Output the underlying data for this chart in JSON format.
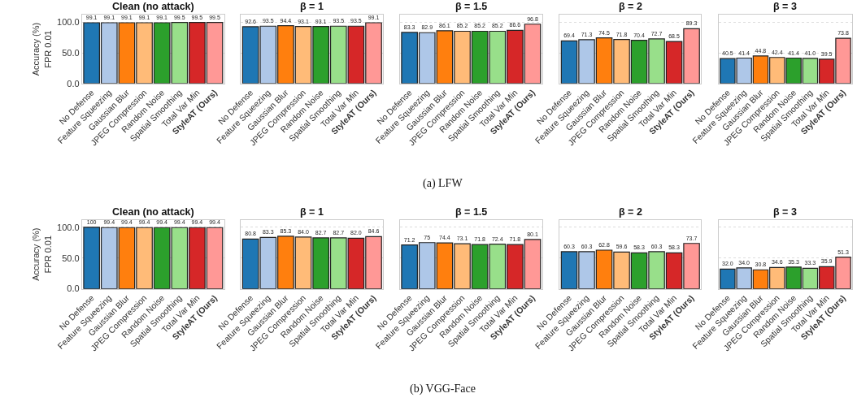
{
  "chart_data": [
    {
      "type": "bar",
      "title": "Clean (no attack)",
      "ylabel": "Accuracy (%)\nFPR 0.01",
      "annotations": [
        "(a) LFW"
      ],
      "categories": [
        "No Defense",
        "Feature Squeezing",
        "Gaussian Blur",
        "JPEG Compression",
        "Random Noise",
        "Spatial Smoothing",
        "Total Var Min",
        "StyleAT (Ours)"
      ],
      "colors": [
        "#1f77b4",
        "#aec7e8",
        "#ff7f0e",
        "#ffbb78",
        "#2ca02c",
        "#98df8a",
        "#d62728",
        "#ff9896"
      ],
      "values": [
        99.1,
        99.1,
        99.1,
        99.1,
        99.1,
        99.5,
        99.5,
        99.5
      ],
      "value_labels": [
        "99.1",
        "99.1",
        "99.1",
        "99.1",
        "99.1",
        "99.5",
        "99.5",
        "99.5"
      ],
      "ylim": [
        0,
        112
      ],
      "yticks": [
        {
          "value": 0,
          "label": "0.0"
        },
        {
          "value": 50,
          "label": "50.0"
        },
        {
          "value": 100,
          "label": "100.0"
        }
      ],
      "grid": "y"
    },
    {
      "type": "bar",
      "title": "β = 1",
      "categories": [
        "No Defense",
        "Feature Squeezing",
        "Gaussian Blur",
        "JPEG Compression",
        "Random Noise",
        "Spatial Smoothing",
        "Total Var Min",
        "StyleAT (Ours)"
      ],
      "colors": [
        "#1f77b4",
        "#aec7e8",
        "#ff7f0e",
        "#ffbb78",
        "#2ca02c",
        "#98df8a",
        "#d62728",
        "#ff9896"
      ],
      "values": [
        92.6,
        93.5,
        94.4,
        93.1,
        93.1,
        93.5,
        93.5,
        99.1
      ],
      "value_labels": [
        "92.6",
        "93.5",
        "94.4",
        "93.1",
        "93.1",
        "93.5",
        "93.5",
        "99.1"
      ],
      "ylim": [
        0,
        112
      ],
      "yticks": [
        {
          "value": 0,
          "label": null
        },
        {
          "value": 50,
          "label": null
        },
        {
          "value": 100,
          "label": null
        }
      ],
      "tick_labels": "x",
      "grid": "y"
    },
    {
      "type": "bar",
      "title": "β = 1.5",
      "categories": [
        "No Defense",
        "Feature Squeezing",
        "Gaussian Blur",
        "JPEG Compression",
        "Random Noise",
        "Spatial Smoothing",
        "Total Var Min",
        "StyleAT (Ours)"
      ],
      "colors": [
        "#1f77b4",
        "#aec7e8",
        "#ff7f0e",
        "#ffbb78",
        "#2ca02c",
        "#98df8a",
        "#d62728",
        "#ff9896"
      ],
      "values": [
        83.3,
        82.9,
        86.1,
        85.2,
        85.2,
        85.2,
        86.6,
        96.8
      ],
      "value_labels": [
        "83.3",
        "82.9",
        "86.1",
        "85.2",
        "85.2",
        "85.2",
        "86.6",
        "96.8"
      ],
      "ylim": [
        0,
        112
      ],
      "yticks": [
        {
          "value": 0,
          "label": null
        },
        {
          "value": 50,
          "label": null
        },
        {
          "value": 100,
          "label": null
        }
      ],
      "tick_labels": "x",
      "grid": "y"
    },
    {
      "type": "bar",
      "title": "β = 2",
      "categories": [
        "No Defense",
        "Feature Squeezing",
        "Gaussian Blur",
        "JPEG Compression",
        "Random Noise",
        "Spatial Smoothing",
        "Total Var Min",
        "StyleAT (Ours)"
      ],
      "colors": [
        "#1f77b4",
        "#aec7e8",
        "#ff7f0e",
        "#ffbb78",
        "#2ca02c",
        "#98df8a",
        "#d62728",
        "#ff9896"
      ],
      "values": [
        69.4,
        71.3,
        74.5,
        71.8,
        70.4,
        72.7,
        68.5,
        89.3
      ],
      "value_labels": [
        "69.4",
        "71.3",
        "74.5",
        "71.8",
        "70.4",
        "72.7",
        "68.5",
        "89.3"
      ],
      "ylim": [
        0,
        112
      ],
      "yticks": [
        {
          "value": 0,
          "label": null
        },
        {
          "value": 50,
          "label": null
        },
        {
          "value": 100,
          "label": null
        }
      ],
      "tick_labels": "x",
      "grid": "y"
    },
    {
      "type": "bar",
      "title": "β = 3",
      "categories": [
        "No Defense",
        "Feature Squeezing",
        "Gaussian Blur",
        "JPEG Compression",
        "Random Noise",
        "Spatial Smoothing",
        "Total Var Min",
        "StyleAT (Ours)"
      ],
      "colors": [
        "#1f77b4",
        "#aec7e8",
        "#ff7f0e",
        "#ffbb78",
        "#2ca02c",
        "#98df8a",
        "#d62728",
        "#ff9896"
      ],
      "values": [
        40.5,
        41.4,
        44.8,
        42.4,
        41.4,
        41.0,
        39.5,
        73.8
      ],
      "value_labels": [
        "40.5",
        "41.4",
        "44.8",
        "42.4",
        "41.4",
        "41.0",
        "39.5",
        "73.8"
      ],
      "ylim": [
        0,
        112
      ],
      "yticks": [
        {
          "value": 0,
          "label": null
        },
        {
          "value": 50,
          "label": null
        },
        {
          "value": 100,
          "label": null
        }
      ],
      "tick_labels": "x",
      "grid": "y"
    },
    {
      "type": "bar",
      "title": "Clean (no attack)",
      "ylabel": "Accuracy (%)\nFPR 0.01",
      "annotations": [
        "(b) VGG-Face"
      ],
      "categories": [
        "No Defense",
        "Feature Squeezing",
        "Gaussian Blur",
        "JPEG Compression",
        "Random Noise",
        "Spatial Smoothing",
        "Total Var Min",
        "StyleAT (Ours)"
      ],
      "colors": [
        "#1f77b4",
        "#aec7e8",
        "#ff7f0e",
        "#ffbb78",
        "#2ca02c",
        "#98df8a",
        "#d62728",
        "#ff9896"
      ],
      "values": [
        100,
        99.4,
        99.4,
        99.4,
        99.4,
        99.4,
        99.4,
        99.4
      ],
      "value_labels": [
        "100",
        "99.4",
        "99.4",
        "99.4",
        "99.4",
        "99.4",
        "99.4",
        "99.4"
      ],
      "ylim": [
        0,
        112
      ],
      "yticks": [
        {
          "value": 0,
          "label": "0.0"
        },
        {
          "value": 50,
          "label": "50.0"
        },
        {
          "value": 100,
          "label": "100.0"
        }
      ],
      "grid": "y"
    },
    {
      "type": "bar",
      "title": "β = 1",
      "categories": [
        "No Defense",
        "Feature Squeezing",
        "Gaussian Blur",
        "JPEG Compression",
        "Random Noise",
        "Spatial Smoothing",
        "Total Var Min",
        "StyleAT (Ours)"
      ],
      "colors": [
        "#1f77b4",
        "#aec7e8",
        "#ff7f0e",
        "#ffbb78",
        "#2ca02c",
        "#98df8a",
        "#d62728",
        "#ff9896"
      ],
      "values": [
        80.8,
        83.3,
        85.3,
        84.0,
        82.7,
        82.7,
        82.0,
        84.6
      ],
      "value_labels": [
        "80.8",
        "83.3",
        "85.3",
        "84.0",
        "82.7",
        "82.7",
        "82.0",
        "84.6"
      ],
      "ylim": [
        0,
        112
      ],
      "yticks": [
        {
          "value": 0,
          "label": null
        },
        {
          "value": 50,
          "label": null
        },
        {
          "value": 100,
          "label": null
        }
      ],
      "tick_labels": "x",
      "grid": "y"
    },
    {
      "type": "bar",
      "title": "β = 1.5",
      "categories": [
        "No Defense",
        "Feature Squeezing",
        "Gaussian Blur",
        "JPEG Compression",
        "Random Noise",
        "Spatial Smoothing",
        "Total Var Min",
        "StyleAT (Ours)"
      ],
      "colors": [
        "#1f77b4",
        "#aec7e8",
        "#ff7f0e",
        "#ffbb78",
        "#2ca02c",
        "#98df8a",
        "#d62728",
        "#ff9896"
      ],
      "values": [
        71.2,
        75,
        74.4,
        73.1,
        71.8,
        72.4,
        71.8,
        80.1
      ],
      "value_labels": [
        "71.2",
        "75",
        "74.4",
        "73.1",
        "71.8",
        "72.4",
        "71.8",
        "80.1"
      ],
      "ylim": [
        0,
        112
      ],
      "yticks": [
        {
          "value": 0,
          "label": null
        },
        {
          "value": 50,
          "label": null
        },
        {
          "value": 100,
          "label": null
        }
      ],
      "tick_labels": "x",
      "grid": "y"
    },
    {
      "type": "bar",
      "title": "β = 2",
      "categories": [
        "No Defense",
        "Feature Squeezing",
        "Gaussian Blur",
        "JPEG Compression",
        "Random Noise",
        "Spatial Smoothing",
        "Total Var Min",
        "StyleAT (Ours)"
      ],
      "colors": [
        "#1f77b4",
        "#aec7e8",
        "#ff7f0e",
        "#ffbb78",
        "#2ca02c",
        "#98df8a",
        "#d62728",
        "#ff9896"
      ],
      "values": [
        60.3,
        60.3,
        62.8,
        59.6,
        58.3,
        60.3,
        58.3,
        73.7
      ],
      "value_labels": [
        "60.3",
        "60.3",
        "62.8",
        "59.6",
        "58.3",
        "60.3",
        "58.3",
        "73.7"
      ],
      "ylim": [
        0,
        112
      ],
      "yticks": [
        {
          "value": 0,
          "label": null
        },
        {
          "value": 50,
          "label": null
        },
        {
          "value": 100,
          "label": null
        }
      ],
      "tick_labels": "x",
      "grid": "y"
    },
    {
      "type": "bar",
      "title": "β = 3",
      "categories": [
        "No Defense",
        "Feature Squeezing",
        "Gaussian Blur",
        "JPEG Compression",
        "Random Noise",
        "Spatial Smoothing",
        "Total Var Min",
        "StyleAT (Ours)"
      ],
      "colors": [
        "#1f77b4",
        "#aec7e8",
        "#ff7f0e",
        "#ffbb78",
        "#2ca02c",
        "#98df8a",
        "#d62728",
        "#ff9896"
      ],
      "values": [
        32.0,
        34.0,
        30.8,
        34.6,
        35.3,
        33.3,
        35.9,
        51.3
      ],
      "value_labels": [
        "32.0",
        "34.0",
        "30.8",
        "34.6",
        "35.3",
        "33.3",
        "35.9",
        "51.3"
      ],
      "ylim": [
        0,
        112
      ],
      "yticks": [
        {
          "value": 0,
          "label": null
        },
        {
          "value": 50,
          "label": null
        },
        {
          "value": 100,
          "label": null
        }
      ],
      "tick_labels": "x",
      "grid": "y"
    }
  ]
}
